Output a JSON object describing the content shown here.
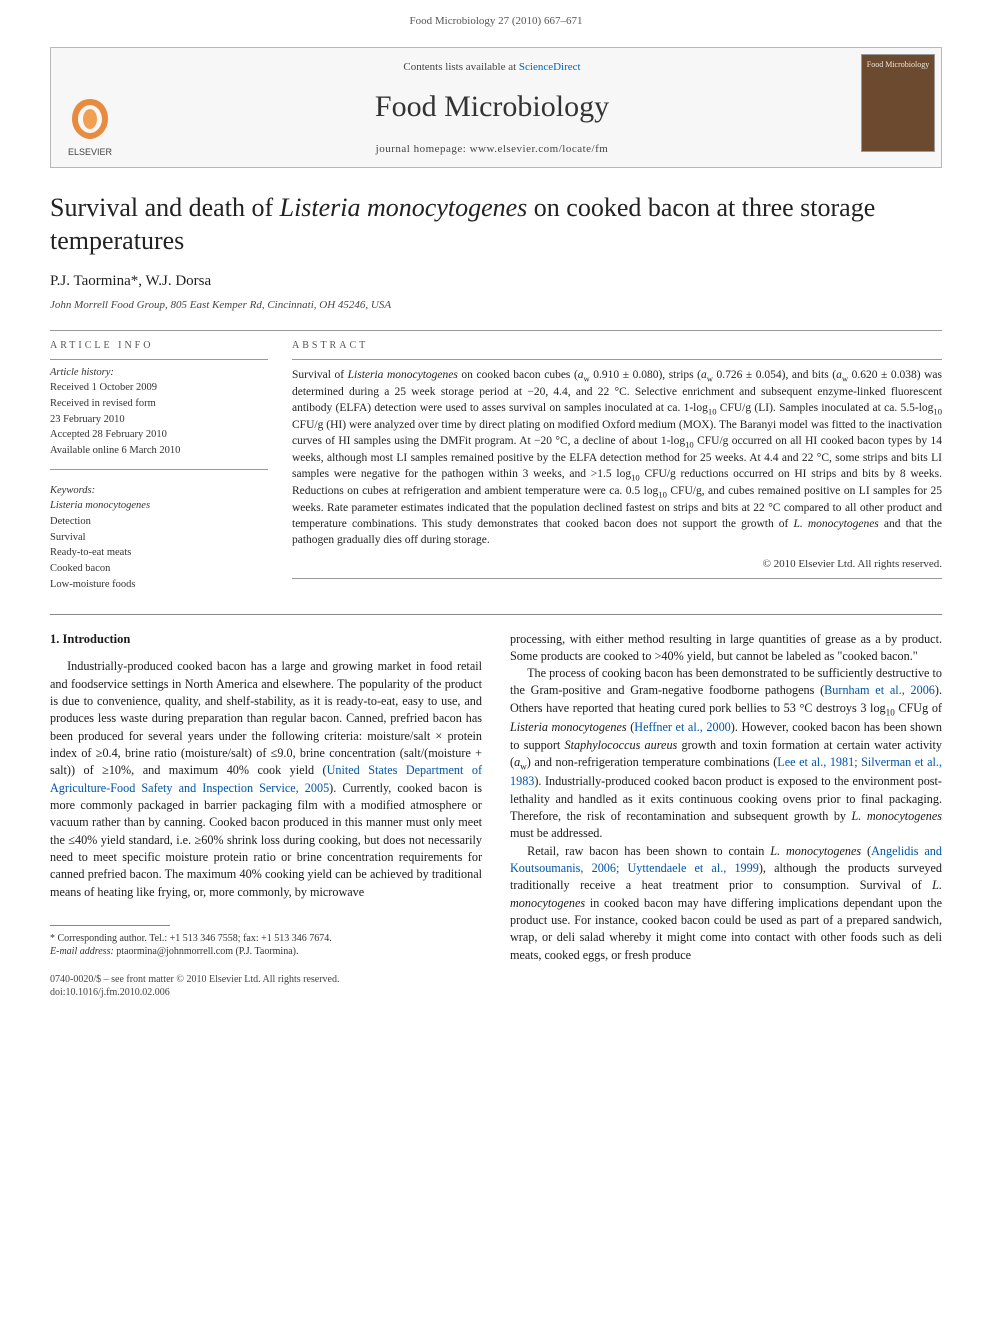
{
  "page_header": "Food Microbiology 27 (2010) 667–671",
  "banner": {
    "contents_prefix": "Contents lists available at ",
    "contents_link": "ScienceDirect",
    "journal_name": "Food Microbiology",
    "homepage_label": "journal homepage: www.elsevier.com/locate/fm",
    "elsevier_label": "ELSEVIER",
    "cover_label": "Food Microbiology"
  },
  "article": {
    "title_html": "Survival and death of <em>Listeria monocytogenes</em> on cooked bacon at three storage temperatures",
    "authors": "P.J. Taormina*, W.J. Dorsa",
    "affiliation": "John Morrell Food Group, 805 East Kemper Rd, Cincinnati, OH 45246, USA"
  },
  "info": {
    "head": "ARTICLE INFO",
    "history_head": "Article history:",
    "h1": "Received 1 October 2009",
    "h2": "Received in revised form",
    "h3": "23 February 2010",
    "h4": "Accepted 28 February 2010",
    "h5": "Available online 6 March 2010",
    "kw_head": "Keywords:",
    "k1": "Listeria monocytogenes",
    "k2": "Detection",
    "k3": "Survival",
    "k4": "Ready-to-eat meats",
    "k5": "Cooked bacon",
    "k6": "Low-moisture foods"
  },
  "abstract": {
    "head": "ABSTRACT",
    "text_html": "Survival of <em>Listeria monocytogenes</em> on cooked bacon cubes (<em>a</em><sub>w</sub> 0.910 ± 0.080), strips (<em>a</em><sub>w</sub> 0.726 ± 0.054), and bits (<em>a</em><sub>w</sub> 0.620 ± 0.038) was determined during a 25 week storage period at −20, 4.4, and 22 °C. Selective enrichment and subsequent enzyme-linked fluorescent antibody (ELFA) detection were used to asses survival on samples inoculated at ca. 1-log<sub>10</sub> CFU/g (LI). Samples inoculated at ca. 5.5-log<sub>10</sub> CFU/g (HI) were analyzed over time by direct plating on modified Oxford medium (MOX). The Baranyi model was fitted to the inactivation curves of HI samples using the DMFit program. At −20 °C, a decline of about 1-log<sub>10</sub> CFU/g occurred on all HI cooked bacon types by 14 weeks, although most LI samples remained positive by the ELFA detection method for 25 weeks. At 4.4 and 22 °C, some strips and bits LI samples were negative for the pathogen within 3 weeks, and >1.5 log<sub>10</sub> CFU/g reductions occurred on HI strips and bits by 8 weeks. Reductions on cubes at refrigeration and ambient temperature were ca. 0.5 log<sub>10</sub> CFU/g, and cubes remained positive on LI samples for 25 weeks. Rate parameter estimates indicated that the population declined fastest on strips and bits at 22 °C compared to all other product and temperature combinations. This study demonstrates that cooked bacon does not support the growth of <em>L. monocytogenes</em> and that the pathogen gradually dies off during storage.",
    "copyright": "© 2010 Elsevier Ltd. All rights reserved."
  },
  "body": {
    "sec1_head": "1. Introduction",
    "left_p1_html": "Industrially-produced cooked bacon has a large and growing market in food retail and foodservice settings in North America and elsewhere. The popularity of the product is due to convenience, quality, and shelf-stability, as it is ready-to-eat, easy to use, and produces less waste during preparation than regular bacon. Canned, prefried bacon has been produced for several years under the following criteria: moisture/salt × protein index of ≥0.4, brine ratio (moisture/salt) of ≤9.0, brine concentration (salt/(moisture + salt)) of ≥10%, and maximum 40% cook yield (<span class=\"cite\">United States Department of Agriculture-Food Safety and Inspection Service, 2005</span>). Currently, cooked bacon is more commonly packaged in barrier packaging film with a modified atmosphere or vacuum rather than by canning. Cooked bacon produced in this manner must only meet the ≤40% yield standard, i.e. ≥60% shrink loss during cooking, but does not necessarily need to meet specific moisture protein ratio or brine concentration requirements for canned prefried bacon. The maximum 40% cooking yield can be achieved by traditional means of heating like frying, or, more commonly, by microwave",
    "right_p1_html": "processing, with either method resulting in large quantities of grease as a by product. Some products are cooked to >40% yield, but cannot be labeled as \"cooked bacon.\"",
    "right_p2_html": "The process of cooking bacon has been demonstrated to be sufficiently destructive to the Gram-positive and Gram-negative foodborne pathogens (<span class=\"cite\">Burnham et al., 2006</span>). Others have reported that heating cured pork bellies to 53 °C destroys 3 log<sub>10</sub> CFUg of <em>Listeria monocytogenes</em> (<span class=\"cite\">Heffner et al., 2000</span>). However, cooked bacon has been shown to support <em>Staphylococcus aureus</em> growth and toxin formation at certain water activity (<em>a</em><sub>w</sub>) and non-refrigeration temperature combinations (<span class=\"cite\">Lee et al., 1981; Silverman et al., 1983</span>). Industrially-produced cooked bacon product is exposed to the environment post-lethality and handled as it exits continuous cooking ovens prior to final packaging. Therefore, the risk of recontamination and subsequent growth by <em>L. monocytogenes</em> must be addressed.",
    "right_p3_html": "Retail, raw bacon has been shown to contain <em>L. monocytogenes</em> (<span class=\"cite\">Angelidis and Koutsoumanis, 2006; Uyttendaele et al., 1999</span>), although the products surveyed traditionally receive a heat treatment prior to consumption. Survival of <em>L. monocytogenes</em> in cooked bacon may have differing implications dependant upon the product use. For instance, cooked bacon could be used as part of a prepared sandwich, wrap, or deli salad whereby it might come into contact with other foods such as deli meats, cooked eggs, or fresh produce"
  },
  "footnote": {
    "line1": "* Corresponding author. Tel.: +1 513 346 7558; fax: +1 513 346 7674.",
    "line2_html": "<em>E-mail address:</em> ptaormina@johnmorrell.com (P.J. Taormina)."
  },
  "bottom": {
    "line1": "0740-0020/$ – see front matter © 2010 Elsevier Ltd. All rights reserved.",
    "line2": "doi:10.1016/j.fm.2010.02.006"
  },
  "colors": {
    "link": "#0066bb",
    "cite": "#0055aa",
    "rule": "#999999",
    "text": "#1a1a1a"
  }
}
